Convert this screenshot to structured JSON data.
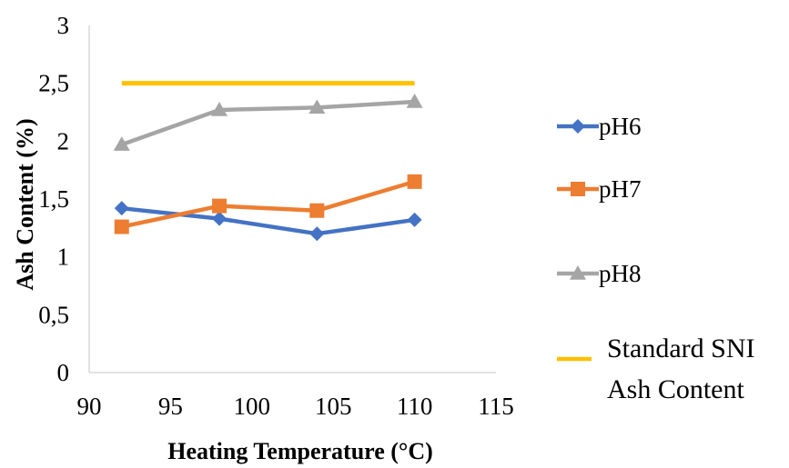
{
  "chart_data": {
    "type": "line",
    "title": "",
    "xlabel": "Heating Temperature (°C)",
    "ylabel": "Ash Content (%)",
    "xlim": [
      90,
      115
    ],
    "ylim": [
      0,
      3
    ],
    "x_ticks": [
      "90",
      "95",
      "100",
      "105",
      "110",
      "115"
    ],
    "y_ticks": [
      "0",
      "0,5",
      "1",
      "1,5",
      "2",
      "2,5",
      "3"
    ],
    "grid": false,
    "legend_position": "right",
    "series": [
      {
        "name": "pH6",
        "color": "#4472C4",
        "marker": "diamond",
        "x": [
          92,
          98,
          104,
          110
        ],
        "y": [
          1.42,
          1.33,
          1.2,
          1.32
        ]
      },
      {
        "name": "pH7",
        "color": "#ED7D31",
        "marker": "square",
        "x": [
          92,
          98,
          104,
          110
        ],
        "y": [
          1.26,
          1.44,
          1.4,
          1.65
        ]
      },
      {
        "name": "pH8",
        "color": "#A5A5A5",
        "marker": "triangle",
        "x": [
          92,
          98,
          104,
          110
        ],
        "y": [
          1.97,
          2.27,
          2.29,
          2.34
        ]
      },
      {
        "name_lines": [
          "Standard SNI",
          "Ash Content"
        ],
        "color": "#FFC000",
        "marker": "none",
        "x": [
          92,
          110
        ],
        "y": [
          2.5,
          2.5
        ]
      }
    ]
  }
}
